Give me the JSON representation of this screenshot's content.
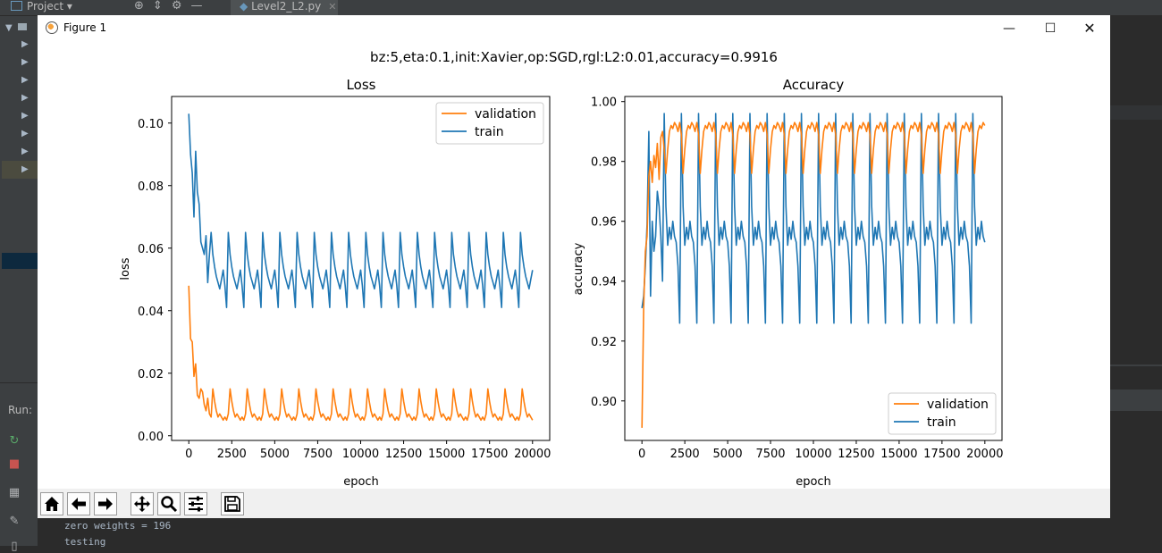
{
  "ide": {
    "project_label": "Project",
    "file_tab": "Level2_L2.py",
    "run_label": "Run:",
    "console_lines": [
      "zero weights = 196",
      "testing"
    ]
  },
  "window": {
    "title": "Figure 1",
    "suptitle": "bz:5,eta:0.1,init:Xavier,op:SGD,rgl:L2:0.01,accuracy=0.9916"
  },
  "toolbar": {
    "buttons": [
      "home-icon",
      "back-arrow-icon",
      "forward-arrow-icon",
      "pan-icon",
      "zoom-icon",
      "configure-subplots-icon",
      "save-icon"
    ]
  },
  "colors": {
    "validation": "#ff7f0e",
    "train": "#1f77b4"
  },
  "chart_data": [
    {
      "type": "line",
      "title": "Loss",
      "xlabel": "epoch",
      "ylabel": "loss",
      "xlim": [
        -1000,
        21000
      ],
      "ylim": [
        -0.0015,
        0.1085
      ],
      "xticks": [
        0,
        2500,
        5000,
        7500,
        10000,
        12500,
        15000,
        17500,
        20000
      ],
      "yticks": [
        0.0,
        0.02,
        0.04,
        0.06,
        0.08,
        0.1
      ],
      "ytick_labels": [
        "0.00",
        "0.02",
        "0.04",
        "0.06",
        "0.08",
        "0.10"
      ],
      "legend_position": "upper right",
      "series": [
        {
          "name": "validation",
          "color": "#ff7f0e",
          "start_values": [
            0.048,
            0.031,
            0.03,
            0.019,
            0.023,
            0.013,
            0.012,
            0.015,
            0.014,
            0.01,
            0.008,
            0.012,
            0.007,
            0.006
          ],
          "period_values": [
            0.015,
            0.011,
            0.008,
            0.006,
            0.007,
            0.006,
            0.005,
            0.006,
            0.005,
            0.007
          ],
          "note": "oscillates between about 0.005 and 0.018 over epochs 1400-20000; ends near 0.005"
        },
        {
          "name": "train",
          "color": "#1f77b4",
          "start_values": [
            0.103,
            0.09,
            0.084,
            0.07,
            0.091,
            0.078,
            0.074,
            0.062,
            0.06,
            0.058,
            0.064,
            0.049,
            0.058
          ],
          "period_values": [
            0.065,
            0.058,
            0.054,
            0.051,
            0.049,
            0.047,
            0.05,
            0.053,
            0.048,
            0.041
          ],
          "note": "oscillates between about 0.040 and 0.060 over epochs 1400-20000; ends near 0.048"
        }
      ]
    },
    {
      "type": "line",
      "title": "Accuracy",
      "xlabel": "epoch",
      "ylabel": "accuracy",
      "xlim": [
        -1000,
        21000
      ],
      "ylim": [
        0.8868,
        1.0017
      ],
      "xticks": [
        0,
        2500,
        5000,
        7500,
        10000,
        12500,
        15000,
        17500,
        20000
      ],
      "yticks": [
        0.9,
        0.92,
        0.94,
        0.96,
        0.98,
        1.0
      ],
      "ytick_labels": [
        "0.90",
        "0.92",
        "0.94",
        "0.96",
        "0.98",
        "1.00"
      ],
      "legend_position": "lower right",
      "series": [
        {
          "name": "validation",
          "color": "#ff7f0e",
          "start_values": [
            0.891,
            0.931,
            0.95,
            0.955,
            0.975,
            0.98,
            0.973,
            0.982,
            0.978,
            0.986,
            0.974,
            0.988,
            0.99,
            0.984
          ],
          "period_values": [
            0.976,
            0.984,
            0.99,
            0.992,
            0.991,
            0.993,
            0.992,
            0.99,
            0.993,
            0.989
          ],
          "note": "oscillates between about 0.976 and 0.993 over epochs 1400-20000; ends near 0.9916"
        },
        {
          "name": "train",
          "color": "#1f77b4",
          "start_values": [
            0.931,
            0.935,
            0.945,
            0.959,
            0.99,
            0.935,
            0.96,
            0.95,
            0.955,
            0.97,
            0.965,
            0.955,
            0.94
          ],
          "period_values": [
            0.996,
            0.965,
            0.952,
            0.958,
            0.954,
            0.96,
            0.955,
            0.953,
            0.945,
            0.926
          ],
          "note": "oscillates between about 0.925 and 0.996 over epochs 1400-20000; ends near 0.951"
        }
      ]
    }
  ]
}
